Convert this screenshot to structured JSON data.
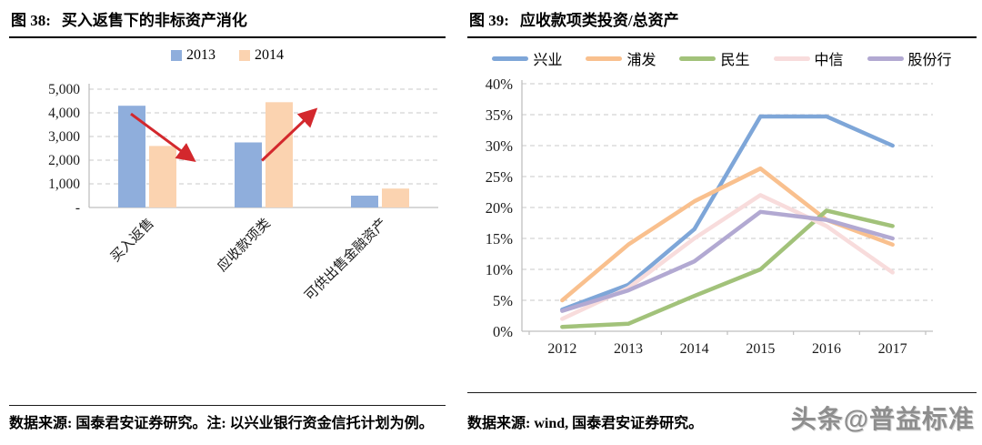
{
  "fig38": {
    "title_prefix": "图 38:",
    "title": "买入返售下的非标资产消化",
    "source": "数据来源: 国泰君安证券研究。注: 以兴业银行资金信托计划为例。"
  },
  "fig39": {
    "title_prefix": "图 39:",
    "title": "应收款项类投资/总资产",
    "source": "数据来源: wind, 国泰君安证券研究。"
  },
  "watermark": "头条@普益标准",
  "colors": {
    "bar_2013": "#8FAEDC",
    "bar_2014": "#FBD3B0",
    "arrow_red": "#D3282D",
    "grid": "#C9C9C9",
    "axis": "#BFBFBF"
  },
  "chart_data": [
    {
      "id": "fig38",
      "type": "bar",
      "title": "买入返售下的非标资产消化",
      "categories": [
        "买入返售",
        "应收款项类",
        "可供出售金融资产"
      ],
      "series": [
        {
          "name": "2013",
          "color": "#8FAEDC",
          "values": [
            4300,
            2750,
            500
          ]
        },
        {
          "name": "2014",
          "color": "#FBD3B0",
          "values": [
            2600,
            4450,
            800
          ]
        }
      ],
      "ylim": [
        0,
        5000
      ],
      "ytick_step": 1000,
      "ytick_labels": [
        "-",
        "1,000",
        "2,000",
        "3,000",
        "4,000",
        "5,000"
      ],
      "grid": "dashed",
      "legend_position": "top",
      "annotations": [
        {
          "type": "arrow",
          "trend": "decrease",
          "category_index": 0,
          "color": "#D3282D"
        },
        {
          "type": "arrow",
          "trend": "increase",
          "category_index": 1,
          "color": "#D3282D"
        }
      ]
    },
    {
      "id": "fig39",
      "type": "line",
      "title": "应收款项类投资/总资产",
      "x": [
        "2012",
        "2013",
        "2014",
        "2015",
        "2016",
        "2017"
      ],
      "series": [
        {
          "name": "兴业",
          "color": "#7EA6D8",
          "values": [
            3.5,
            7.5,
            16.5,
            34.7,
            34.7,
            30.0
          ]
        },
        {
          "name": "浦发",
          "color": "#F9C08E",
          "values": [
            5.0,
            14.0,
            21.0,
            26.3,
            18.0,
            14.0
          ]
        },
        {
          "name": "民生",
          "color": "#A2C27A",
          "values": [
            0.7,
            1.2,
            5.7,
            10.0,
            19.5,
            17.0
          ]
        },
        {
          "name": "中信",
          "color": "#F8DCDC",
          "values": [
            2.0,
            7.0,
            15.0,
            22.0,
            17.0,
            9.5
          ]
        },
        {
          "name": "股份行",
          "color": "#B2A9D2",
          "values": [
            3.3,
            6.6,
            11.3,
            19.3,
            18.0,
            15.0
          ]
        }
      ],
      "ylim": [
        0,
        40
      ],
      "ytick_step": 5,
      "ytick_suffix": "%",
      "grid": "dashed",
      "legend_position": "top"
    }
  ]
}
